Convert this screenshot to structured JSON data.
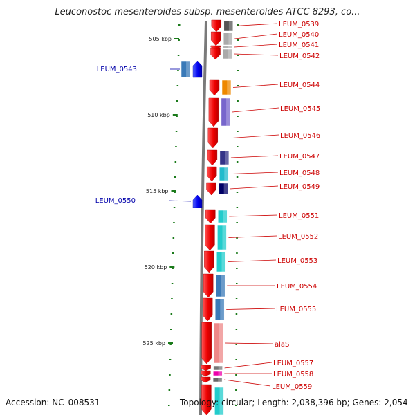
{
  "title": "Leuconostoc mesenteroides subsp. mesenteroides ATCC 8293, co...",
  "footer": {
    "accession": "Accession: NC_008531",
    "topology": "Topology: circular; Length: 2,038,396 bp; Genes: 2,054"
  },
  "colors": {
    "backbone": "#7a7a7a",
    "forward_gene": "#0000ee",
    "reverse_gene": "#ee0000",
    "forward_label": "#0000aa",
    "reverse_label": "#cc0000",
    "tick": "#1a7a1a"
  },
  "kbp_labels": [
    "505 kbp",
    "510 kbp",
    "515 kbp",
    "520 kbp",
    "525 kbp"
  ],
  "forward_genes": [
    {
      "name": "LEUM_0543",
      "cog": "#3a7ab8"
    },
    {
      "name": "LEUM_0550",
      "cog": ""
    }
  ],
  "reverse_genes": [
    {
      "name": "LEUM_0539",
      "cog": "#555555"
    },
    {
      "name": "LEUM_0540",
      "cog": "#aaaaaa"
    },
    {
      "name": "LEUM_0541",
      "cog": "#999999"
    },
    {
      "name": "LEUM_0542",
      "cog": "#aaaaaa"
    },
    {
      "name": "LEUM_0544",
      "cog": "#ee8800"
    },
    {
      "name": "LEUM_0545",
      "cog": "#7766cc"
    },
    {
      "name": "LEUM_0546",
      "cog": ""
    },
    {
      "name": "LEUM_0547",
      "cog": "#333388"
    },
    {
      "name": "LEUM_0548",
      "cog": "#22bbcc"
    },
    {
      "name": "LEUM_0549",
      "cog": "#000066"
    },
    {
      "name": "LEUM_0551",
      "cog": "#22cccc"
    },
    {
      "name": "LEUM_0552",
      "cog": "#22cccc"
    },
    {
      "name": "LEUM_0553",
      "cog": "#22cccc"
    },
    {
      "name": "LEUM_0554",
      "cog": "#3a7ab8"
    },
    {
      "name": "LEUM_0555",
      "cog": "#3a7ab8"
    },
    {
      "name": "alaS",
      "cog": "#ee8888"
    },
    {
      "name": "LEUM_0557",
      "cog": "#777777"
    },
    {
      "name": "LEUM_0558",
      "cog": "#ee00aa"
    },
    {
      "name": "LEUM_0559",
      "cog": "#666666"
    }
  ]
}
